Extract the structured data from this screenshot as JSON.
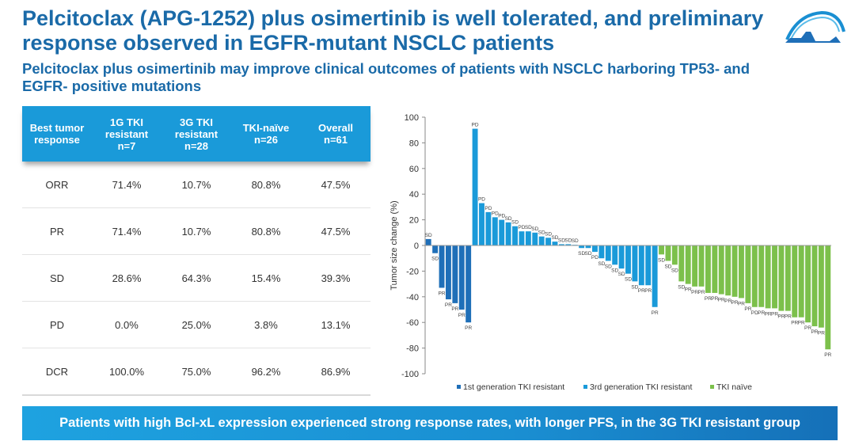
{
  "header": {
    "title": "Pelcitoclax (APG-1252) plus osimertinib is well tolerated, and preliminary response observed in EGFR-mutant NSCLC patients",
    "subtitle": "Pelcitoclax plus osimertinib may improve clinical outcomes of patients with NSCLC harboring TP53- and EGFR- positive mutations",
    "logo_icon": "company-arc-logo"
  },
  "table": {
    "headers": [
      "Best tumor\nresponse",
      "1G TKI\nresistant\nn=7",
      "3G TKI\nresistant\nn=28",
      "TKI-naïve\nn=26",
      "Overall\nn=61"
    ],
    "rows": [
      [
        "ORR",
        "71.4%",
        "10.7%",
        "80.8%",
        "47.5%"
      ],
      [
        "PR",
        "71.4%",
        "10.7%",
        "80.8%",
        "47.5%"
      ],
      [
        "SD",
        "28.6%",
        "64.3%",
        "15.4%",
        "39.3%"
      ],
      [
        "PD",
        "0.0%",
        "25.0%",
        "3.8%",
        "13.1%"
      ],
      [
        "DCR",
        "100.0%",
        "75.0%",
        "96.2%",
        "86.9%"
      ]
    ]
  },
  "colors": {
    "title": "#1a6aa8",
    "table_header": "#1a9ad9",
    "first_gen": "#1f6fb8",
    "third_gen": "#1a9ad9",
    "tki_naive": "#7cc04b"
  },
  "chart_data": {
    "type": "bar",
    "title": "",
    "xlabel": "",
    "ylabel": "Tumor size change (%)",
    "ylim": [
      -100,
      100
    ],
    "yticks": [
      100,
      80,
      60,
      40,
      20,
      0,
      -20,
      -40,
      -60,
      -80,
      -100
    ],
    "grid": false,
    "legend_position": "bottom",
    "series": [
      {
        "name": "1st generation TKI resistant",
        "color": "#1f6fb8",
        "values": [
          5,
          -6,
          -33,
          -42,
          -45,
          -50,
          -60
        ],
        "labels": [
          "SD",
          "SD",
          "PR",
          "PR",
          "PR",
          "PR",
          "PR"
        ]
      },
      {
        "name": "3rd generation TKI resistant",
        "color": "#1a9ad9",
        "values": [
          91,
          33,
          26,
          22,
          20,
          18,
          15,
          11,
          11,
          10,
          7,
          6,
          3,
          1,
          1,
          0.5,
          -2,
          -2,
          -5,
          -10,
          -12,
          -15,
          -18,
          -22,
          -28,
          -31,
          -31,
          -48
        ],
        "labels": [
          "PD",
          "PD",
          "PD",
          "PD",
          "PD",
          "SD",
          "SD",
          "PD",
          "SD",
          "SD",
          "SD",
          "SD",
          "SD",
          "SD",
          "SD",
          "SD",
          "SD",
          "SD",
          "PD",
          "SD",
          "SD",
          "SD",
          "SD",
          "SD",
          "SD",
          "PR",
          "PR",
          "PR"
        ]
      },
      {
        "name": "TKI naïve",
        "color": "#7cc04b",
        "values": [
          -7,
          -12,
          -15,
          -28,
          -30,
          -32,
          -32,
          -37,
          -37,
          -38,
          -39,
          -40,
          -41,
          -45,
          -48,
          -48,
          -49,
          -49,
          -51,
          -51,
          -56,
          -56,
          -60,
          -63,
          -64,
          -81
        ],
        "labels": [
          "SD",
          "SD",
          "SD",
          "SD",
          "PR",
          "PR",
          "PR",
          "PR",
          "PR",
          "PR",
          "PR",
          "PR",
          "PR",
          "PR",
          "PD",
          "PR",
          "PR",
          "PR",
          "PR",
          "PR",
          "PR",
          "PR",
          "PR",
          "PR",
          "PR",
          "PR"
        ]
      }
    ]
  },
  "banner": {
    "text": "Patients with high Bcl-xL expression experienced strong response rates, with longer PFS, in the 3G TKI resistant group"
  }
}
